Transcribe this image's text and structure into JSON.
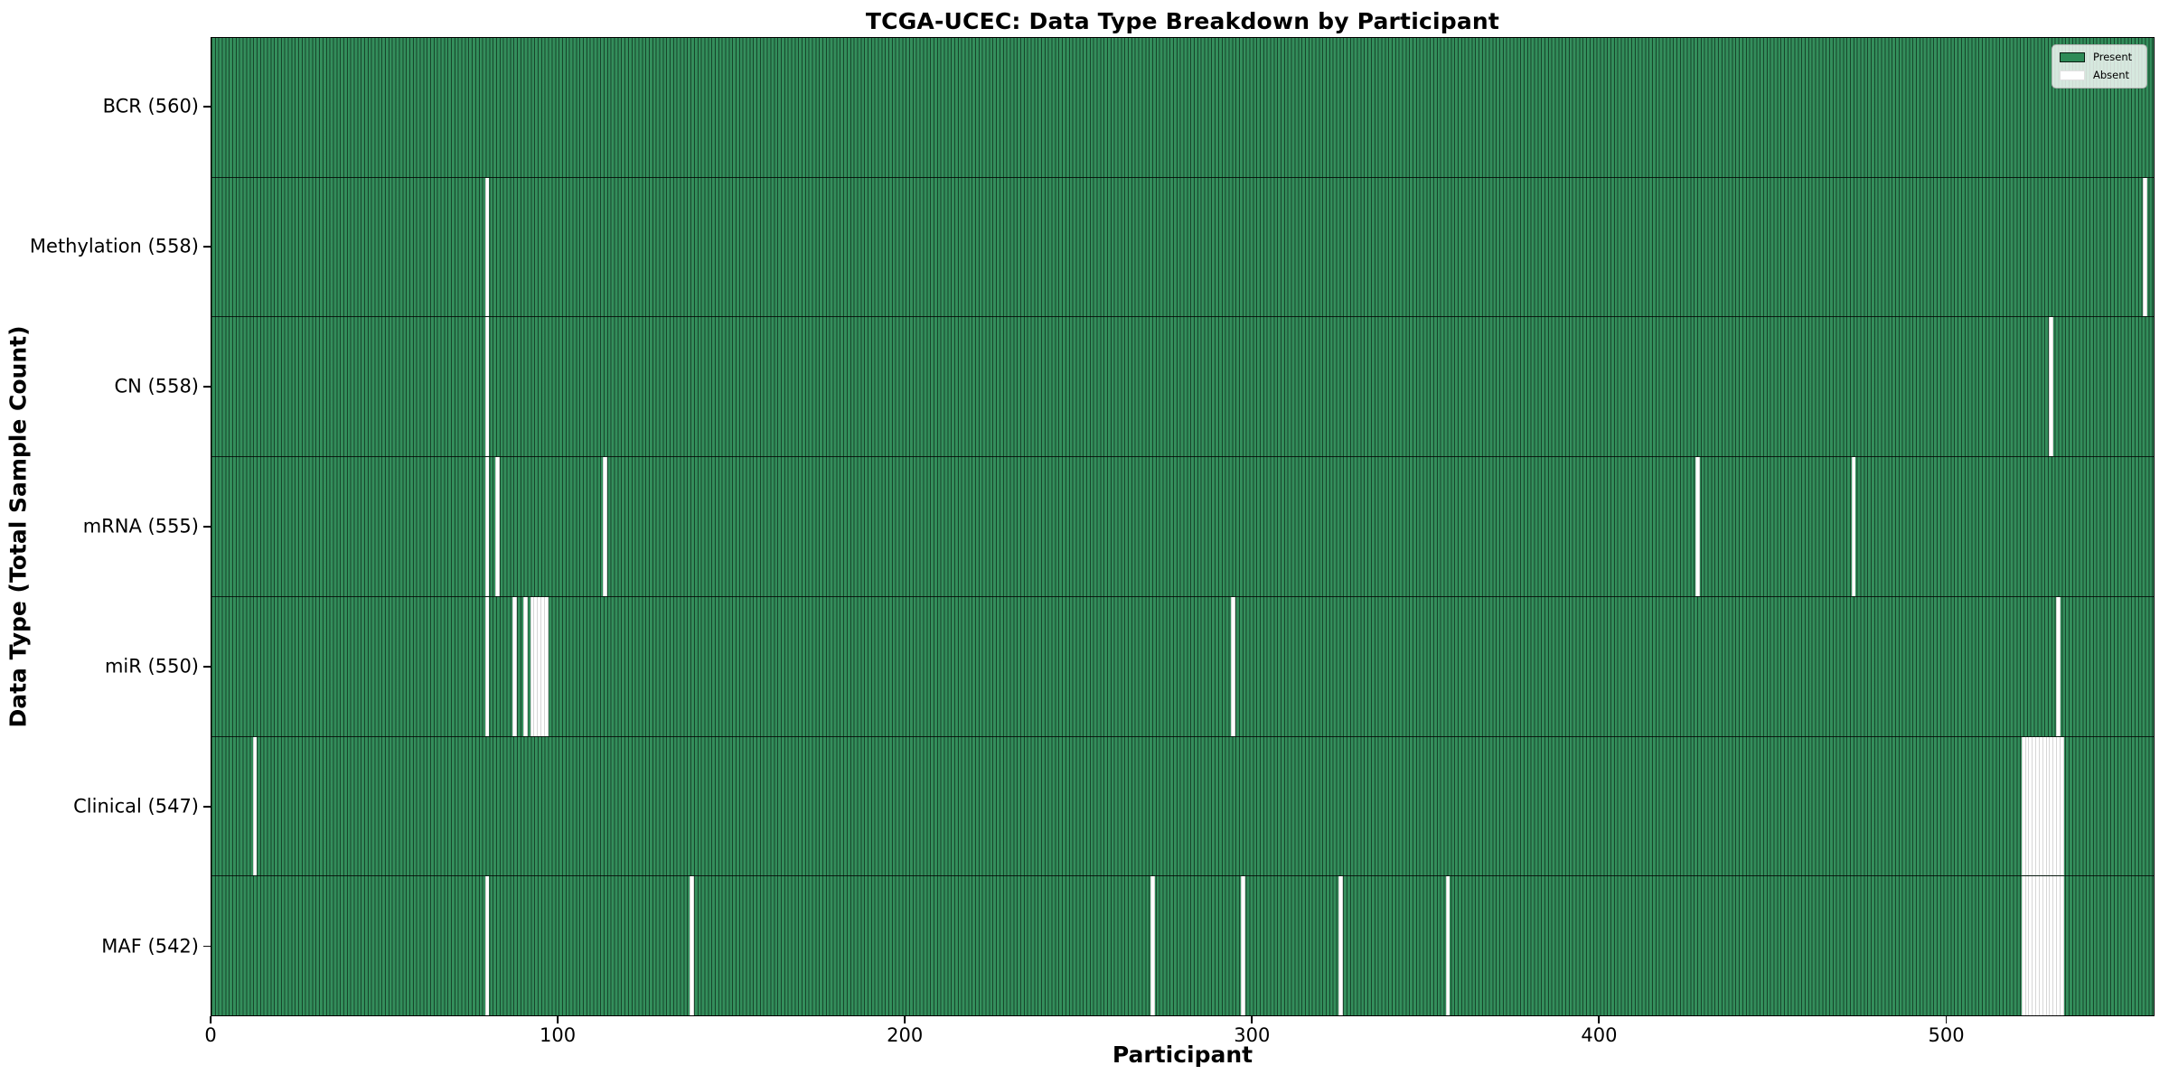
{
  "title": "TCGA-UCEC: Data Type Breakdown by Participant",
  "axes": {
    "x_label": "Participant",
    "y_label": "Data Type (Total Sample Count)"
  },
  "legend": {
    "present_label": "Present",
    "absent_label": "Absent"
  },
  "chart_data": {
    "type": "heatmap",
    "title": "TCGA-UCEC: Data Type Breakdown by Participant",
    "xlabel": "Participant",
    "ylabel": "Data Type (Total Sample Count)",
    "xlim": [
      0,
      560
    ],
    "x_ticks": [
      0,
      100,
      200,
      300,
      400,
      500
    ],
    "n_participants": 560,
    "grid": false,
    "legend_position": "upper right",
    "colors": {
      "present": "#2e8b57",
      "absent": "#ffffff"
    },
    "legend_entries": [
      {
        "label": "Present",
        "color": "#2e8b57"
      },
      {
        "label": "Absent",
        "color": "#ffffff"
      }
    ],
    "rows": [
      {
        "data_type": "BCR",
        "label": "BCR (560)",
        "present_count": 560,
        "absent_participants": []
      },
      {
        "data_type": "Methylation",
        "label": "Methylation (558)",
        "present_count": 558,
        "absent_participants": [
          79,
          557
        ]
      },
      {
        "data_type": "CN",
        "label": "CN (558)",
        "present_count": 558,
        "absent_participants": [
          79,
          530
        ]
      },
      {
        "data_type": "mRNA",
        "label": "mRNA (555)",
        "present_count": 555,
        "absent_participants": [
          79,
          82,
          113,
          428,
          473
        ]
      },
      {
        "data_type": "miR",
        "label": "miR (550)",
        "present_count": 550,
        "absent_participants": [
          79,
          87,
          90,
          92,
          93,
          94,
          95,
          96,
          294,
          532
        ]
      },
      {
        "data_type": "Clinical",
        "label": "Clinical (547)",
        "present_count": 547,
        "absent_participants": [
          12,
          522,
          523,
          524,
          525,
          526,
          527,
          528,
          529,
          530,
          531,
          532,
          533
        ]
      },
      {
        "data_type": "MAF",
        "label": "MAF (542)",
        "present_count": 542,
        "absent_participants": [
          79,
          138,
          271,
          297,
          325,
          356,
          522,
          523,
          524,
          525,
          526,
          527,
          528,
          529,
          530,
          531,
          532,
          533
        ]
      }
    ]
  }
}
